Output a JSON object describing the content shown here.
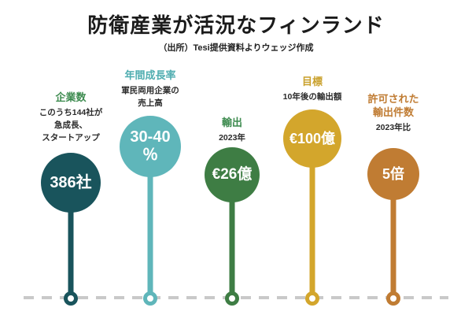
{
  "title": "防衛産業が活況なフィンランド",
  "source": "（出所）Tesi提供資料よりウェッジ作成",
  "baseline_color": "#c9c9c9",
  "columns": [
    {
      "heading": "企業数",
      "sub": "このうち144社が\n急成長、\nスタートアップ",
      "value": "386社",
      "circle_color": "#19545c",
      "heading_color": "#3d8b4f"
    },
    {
      "heading": "年間成長率",
      "sub": "軍民両用企業の\n売上高",
      "value": "30-40\n％",
      "circle_color": "#5fb6ba",
      "heading_color": "#4fadb0"
    },
    {
      "heading": "輸出",
      "sub": "2023年",
      "value": "€26億",
      "circle_color": "#3e7d44",
      "heading_color": "#3d8b4f"
    },
    {
      "heading": "目標",
      "sub": "10年後の輸出額",
      "value": "€100億",
      "circle_color": "#d3a62c",
      "heading_color": "#c9a02b"
    },
    {
      "heading": "許可された\n輸出件数",
      "sub": "2023年比",
      "value": "5倍",
      "circle_color": "#c07c33",
      "heading_color": "#c07c33"
    }
  ],
  "chart_data": {
    "type": "bar",
    "title": "防衛産業が活況なフィンランド",
    "source": "（出所）Tesi提供資料よりウェッジ作成",
    "categories": [
      "企業数",
      "年間成長率",
      "輸出",
      "目標",
      "許可された輸出件数"
    ],
    "values": [
      "386社",
      "30-40％",
      "€26億",
      "€100億",
      "5倍"
    ],
    "annotations": [
      "このうち144社が急成長、スタートアップ",
      "軍民両用企業の売上高",
      "2023年",
      "10年後の輸出額",
      "2023年比"
    ],
    "colors": [
      "#19545c",
      "#5fb6ba",
      "#3e7d44",
      "#d3a62c",
      "#c07c33"
    ],
    "legend_position": "none",
    "grid": false,
    "layout_hint": "lollipop infographic circles rising from dashed baseline"
  }
}
